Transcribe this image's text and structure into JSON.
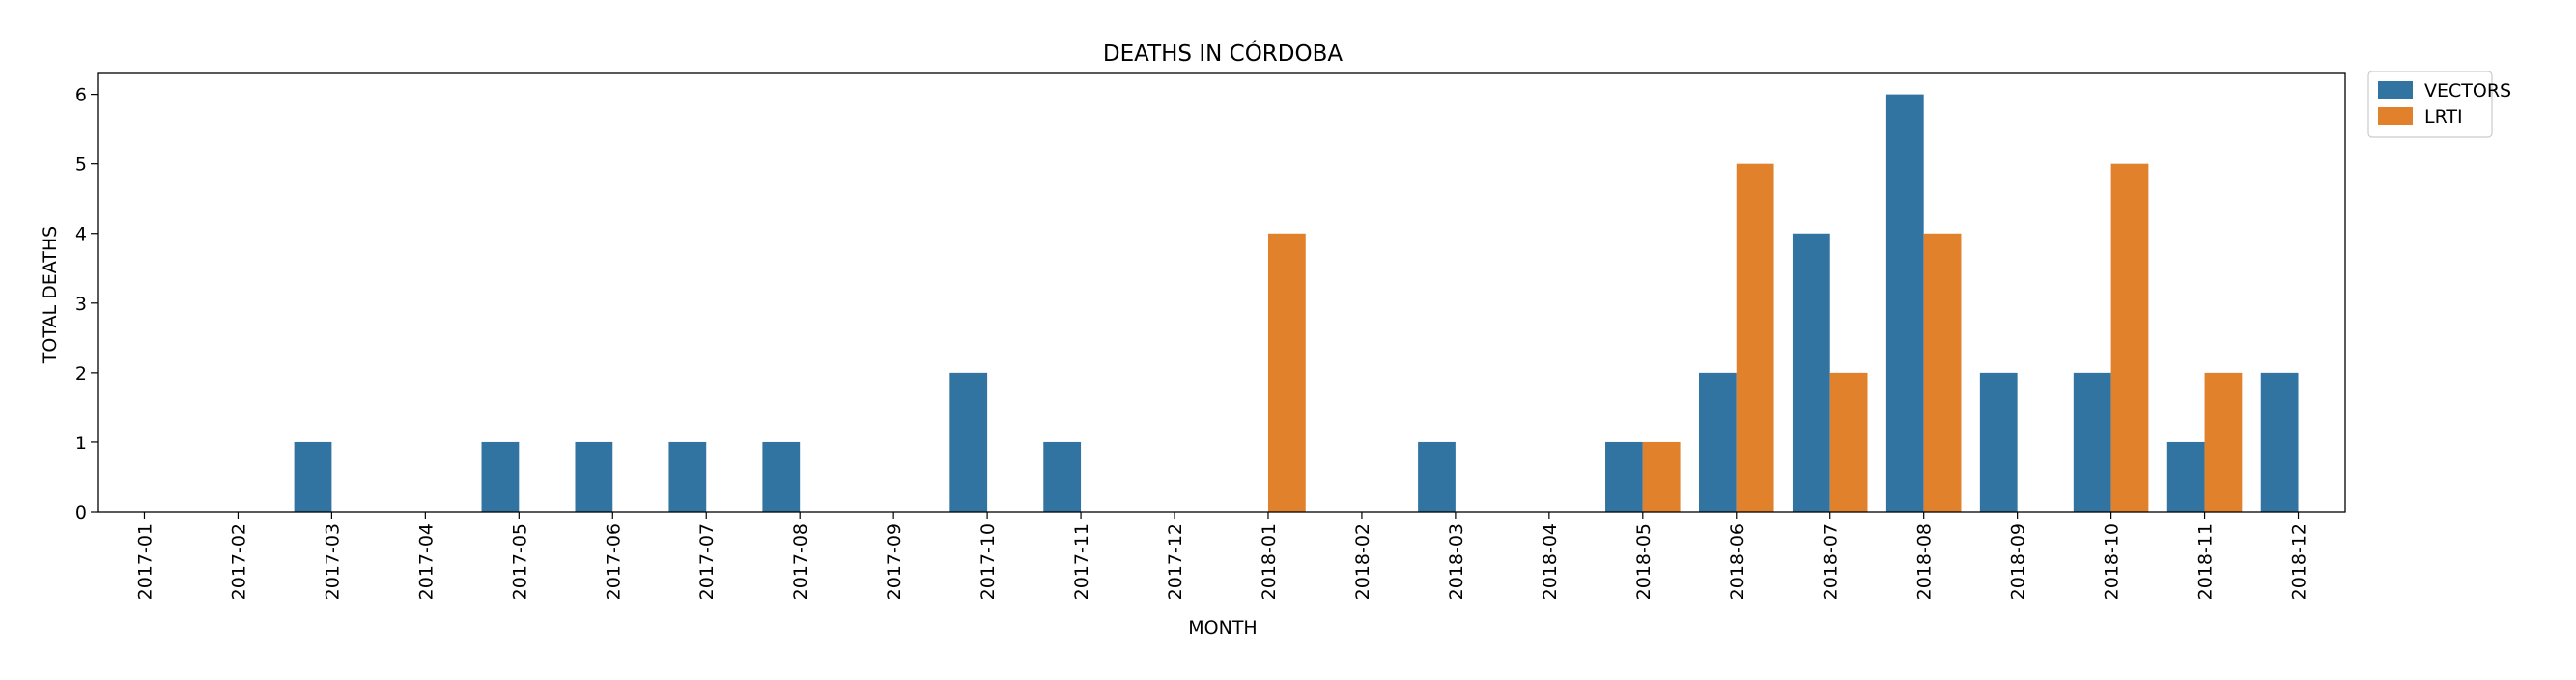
{
  "chart_data": {
    "type": "bar",
    "title": "DEATHS IN CÓRDOBA",
    "xlabel": "MONTH",
    "ylabel": "TOTAL DEATHS",
    "categories": [
      "2017-01",
      "2017-02",
      "2017-03",
      "2017-04",
      "2017-05",
      "2017-06",
      "2017-07",
      "2017-08",
      "2017-09",
      "2017-10",
      "2017-11",
      "2017-12",
      "2018-01",
      "2018-02",
      "2018-03",
      "2018-04",
      "2018-05",
      "2018-06",
      "2018-07",
      "2018-08",
      "2018-09",
      "2018-10",
      "2018-11",
      "2018-12"
    ],
    "series": [
      {
        "name": "VECTORS",
        "color": "#3274a1",
        "values": [
          0,
          0,
          1,
          0,
          1,
          1,
          1,
          1,
          0,
          2,
          1,
          0,
          0,
          0,
          1,
          0,
          1,
          2,
          4,
          6,
          2,
          2,
          1,
          2
        ]
      },
      {
        "name": "LRTI",
        "color": "#e1812c",
        "values": [
          0,
          0,
          0,
          0,
          0,
          0,
          0,
          0,
          0,
          0,
          0,
          0,
          4,
          0,
          0,
          0,
          1,
          5,
          2,
          4,
          0,
          5,
          2,
          0
        ]
      }
    ],
    "ylim": [
      0,
      6.3
    ],
    "yticks": [
      0,
      1,
      2,
      3,
      4,
      5,
      6
    ],
    "grid": false,
    "legend_position": "outside-top-right"
  }
}
